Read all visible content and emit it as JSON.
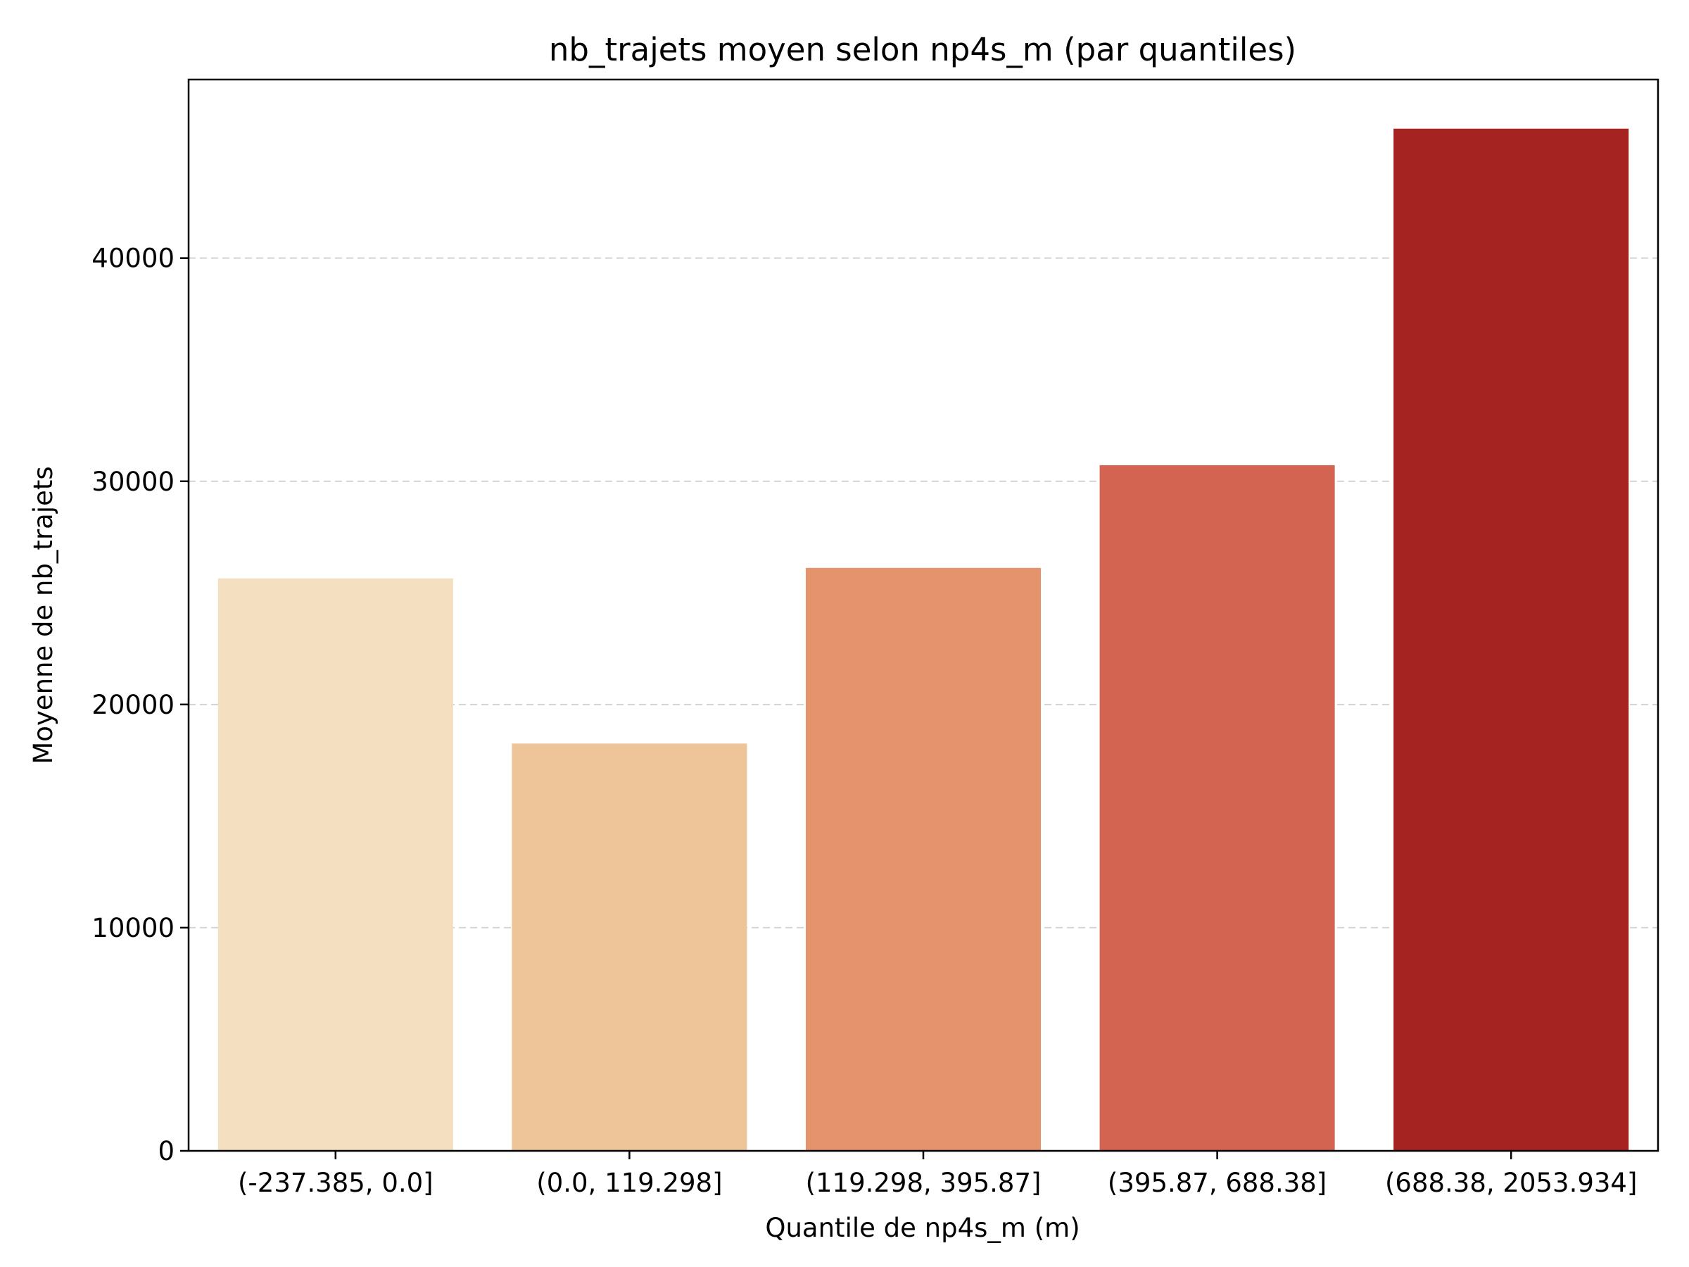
{
  "chart_data": {
    "type": "bar",
    "title": "nb_trajets moyen selon np4s_m (par quantiles)",
    "xlabel": "Quantile de np4s_m (m)",
    "ylabel": "Moyenne de nb_trajets",
    "categories": [
      "(-237.385, 0.0]",
      "(0.0, 119.298]",
      "(119.298, 395.87]",
      "(395.87, 688.38]",
      "(688.38, 2053.934]"
    ],
    "values": [
      25650,
      18250,
      26120,
      30720,
      45800
    ],
    "colors": [
      "#f5dfc1",
      "#eec499",
      "#e5936c",
      "#d36451",
      "#a52321"
    ],
    "ylim": [
      0,
      48000
    ],
    "yticks": [
      0,
      10000,
      20000,
      30000,
      40000
    ],
    "ytick_labels": [
      "0",
      "10000",
      "20000",
      "30000",
      "40000"
    ],
    "grid": "y-dashed"
  }
}
